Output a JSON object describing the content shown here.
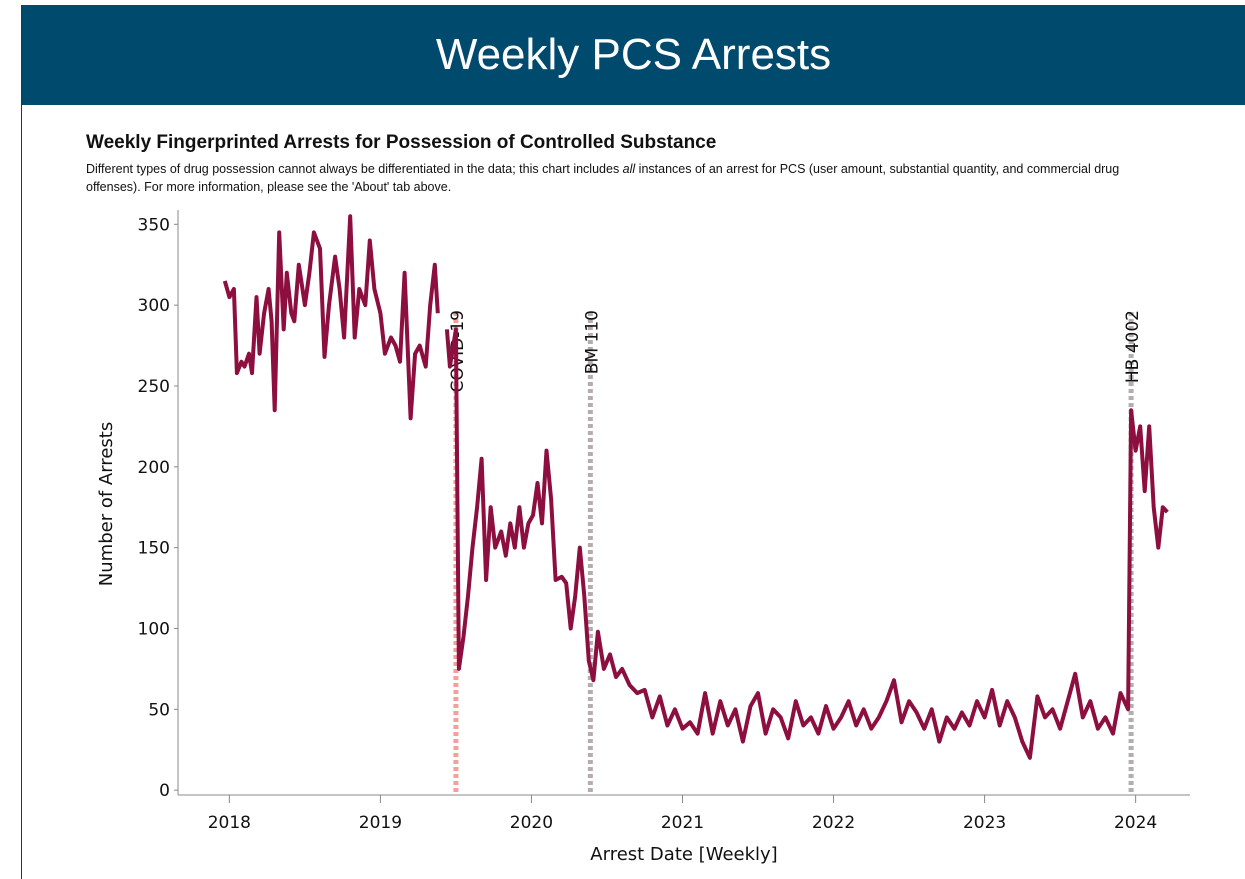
{
  "header": {
    "title": "Weekly PCS Arrests"
  },
  "chart_data": {
    "type": "line",
    "title": "Weekly Fingerprinted Arrests for Possession of Controlled Substance",
    "subtitle": [
      "Different types of drug possession cannot always be differentiated in the data; this chart includes ",
      "all",
      " instances of an arrest for PCS (user amount, substantial quantity, and commercial drug offenses). For more information, please see the 'About' tab above."
    ],
    "xlabel": "Arrest Date [Weekly]",
    "ylabel": "Number of Arrests",
    "color": "#8c0f3f",
    "xlim": [
      2017.66,
      2024.36
    ],
    "xticks": [
      2018,
      2019,
      2020,
      2021,
      2022,
      2023,
      2024
    ],
    "ylim": [
      -3,
      357
    ],
    "yticks": [
      0,
      50,
      100,
      150,
      200,
      250,
      300,
      350
    ],
    "annotations": [
      {
        "label": "COVID-19",
        "x": 2019.5,
        "color": "#f4a09a"
      },
      {
        "label": "BM 110",
        "x": 2020.39,
        "color": "#b5adad"
      },
      {
        "label": "HB 4002",
        "x": 2023.97,
        "color": "#b5adad"
      }
    ],
    "x": [
      2017.97,
      2018.0,
      2018.03,
      2018.05,
      2018.08,
      2018.1,
      2018.13,
      2018.15,
      2018.18,
      2018.2,
      2018.23,
      2018.26,
      2018.28,
      2018.3,
      2018.33,
      2018.36,
      2018.38,
      2018.41,
      2018.43,
      2018.46,
      2018.5,
      2018.53,
      2018.56,
      2018.6,
      2018.63,
      2018.66,
      2018.7,
      2018.73,
      2018.76,
      2018.8,
      2018.83,
      2018.86,
      2018.9,
      2018.93,
      2018.96,
      2019.0,
      2019.03,
      2019.07,
      2019.1,
      2019.13,
      2019.16,
      2019.2,
      2019.23,
      2019.26,
      2019.3,
      2019.33,
      2019.36,
      2019.38,
      2019.42,
      2019.44,
      2019.46,
      2019.5,
      2019.52,
      2019.55,
      2019.58,
      2019.61,
      2019.64,
      2019.67,
      2019.7,
      2019.73,
      2019.76,
      2019.8,
      2019.83,
      2019.86,
      2019.89,
      2019.92,
      2019.95,
      2019.98,
      2020.01,
      2020.04,
      2020.07,
      2020.1,
      2020.13,
      2020.16,
      2020.2,
      2020.23,
      2020.26,
      2020.29,
      2020.32,
      2020.35,
      2020.38,
      2020.41,
      2020.44,
      2020.48,
      2020.52,
      2020.56,
      2020.6,
      2020.65,
      2020.7,
      2020.75,
      2020.8,
      2020.85,
      2020.9,
      2020.95,
      2021.0,
      2021.05,
      2021.1,
      2021.15,
      2021.2,
      2021.25,
      2021.3,
      2021.35,
      2021.4,
      2021.45,
      2021.5,
      2021.55,
      2021.6,
      2021.65,
      2021.7,
      2021.75,
      2021.8,
      2021.85,
      2021.9,
      2021.95,
      2022.0,
      2022.05,
      2022.1,
      2022.15,
      2022.2,
      2022.25,
      2022.3,
      2022.35,
      2022.4,
      2022.45,
      2022.5,
      2022.55,
      2022.6,
      2022.65,
      2022.7,
      2022.75,
      2022.8,
      2022.85,
      2022.9,
      2022.95,
      2023.0,
      2023.05,
      2023.1,
      2023.15,
      2023.2,
      2023.25,
      2023.3,
      2023.35,
      2023.4,
      2023.45,
      2023.5,
      2023.55,
      2023.6,
      2023.65,
      2023.7,
      2023.75,
      2023.8,
      2023.85,
      2023.9,
      2023.95,
      2023.97,
      2024.0,
      2024.03,
      2024.06,
      2024.09,
      2024.12,
      2024.15,
      2024.18,
      2024.21
    ],
    "values": [
      315,
      305,
      310,
      258,
      265,
      262,
      270,
      258,
      305,
      270,
      295,
      310,
      290,
      235,
      345,
      285,
      320,
      295,
      290,
      325,
      300,
      320,
      345,
      335,
      268,
      300,
      330,
      310,
      280,
      355,
      280,
      310,
      300,
      340,
      310,
      295,
      270,
      280,
      275,
      265,
      320,
      230,
      270,
      275,
      262,
      300,
      325,
      295,
      null,
      285,
      262,
      285,
      75,
      95,
      120,
      150,
      175,
      205,
      130,
      175,
      150,
      160,
      145,
      165,
      150,
      175,
      150,
      165,
      170,
      190,
      165,
      210,
      180,
      130,
      132,
      128,
      100,
      120,
      150,
      120,
      80,
      68,
      98,
      75,
      84,
      70,
      75,
      65,
      60,
      62,
      45,
      58,
      40,
      50,
      38,
      42,
      35,
      60,
      35,
      55,
      40,
      50,
      30,
      52,
      60,
      35,
      50,
      45,
      32,
      55,
      40,
      45,
      35,
      52,
      38,
      45,
      55,
      40,
      50,
      38,
      45,
      55,
      68,
      42,
      55,
      48,
      38,
      50,
      30,
      45,
      38,
      48,
      40,
      55,
      45,
      62,
      40,
      55,
      45,
      30,
      20,
      58,
      45,
      50,
      38,
      55,
      72,
      45,
      55,
      38,
      45,
      35,
      60,
      50,
      235,
      210,
      225,
      185,
      225,
      175,
      150,
      175,
      172
    ]
  }
}
